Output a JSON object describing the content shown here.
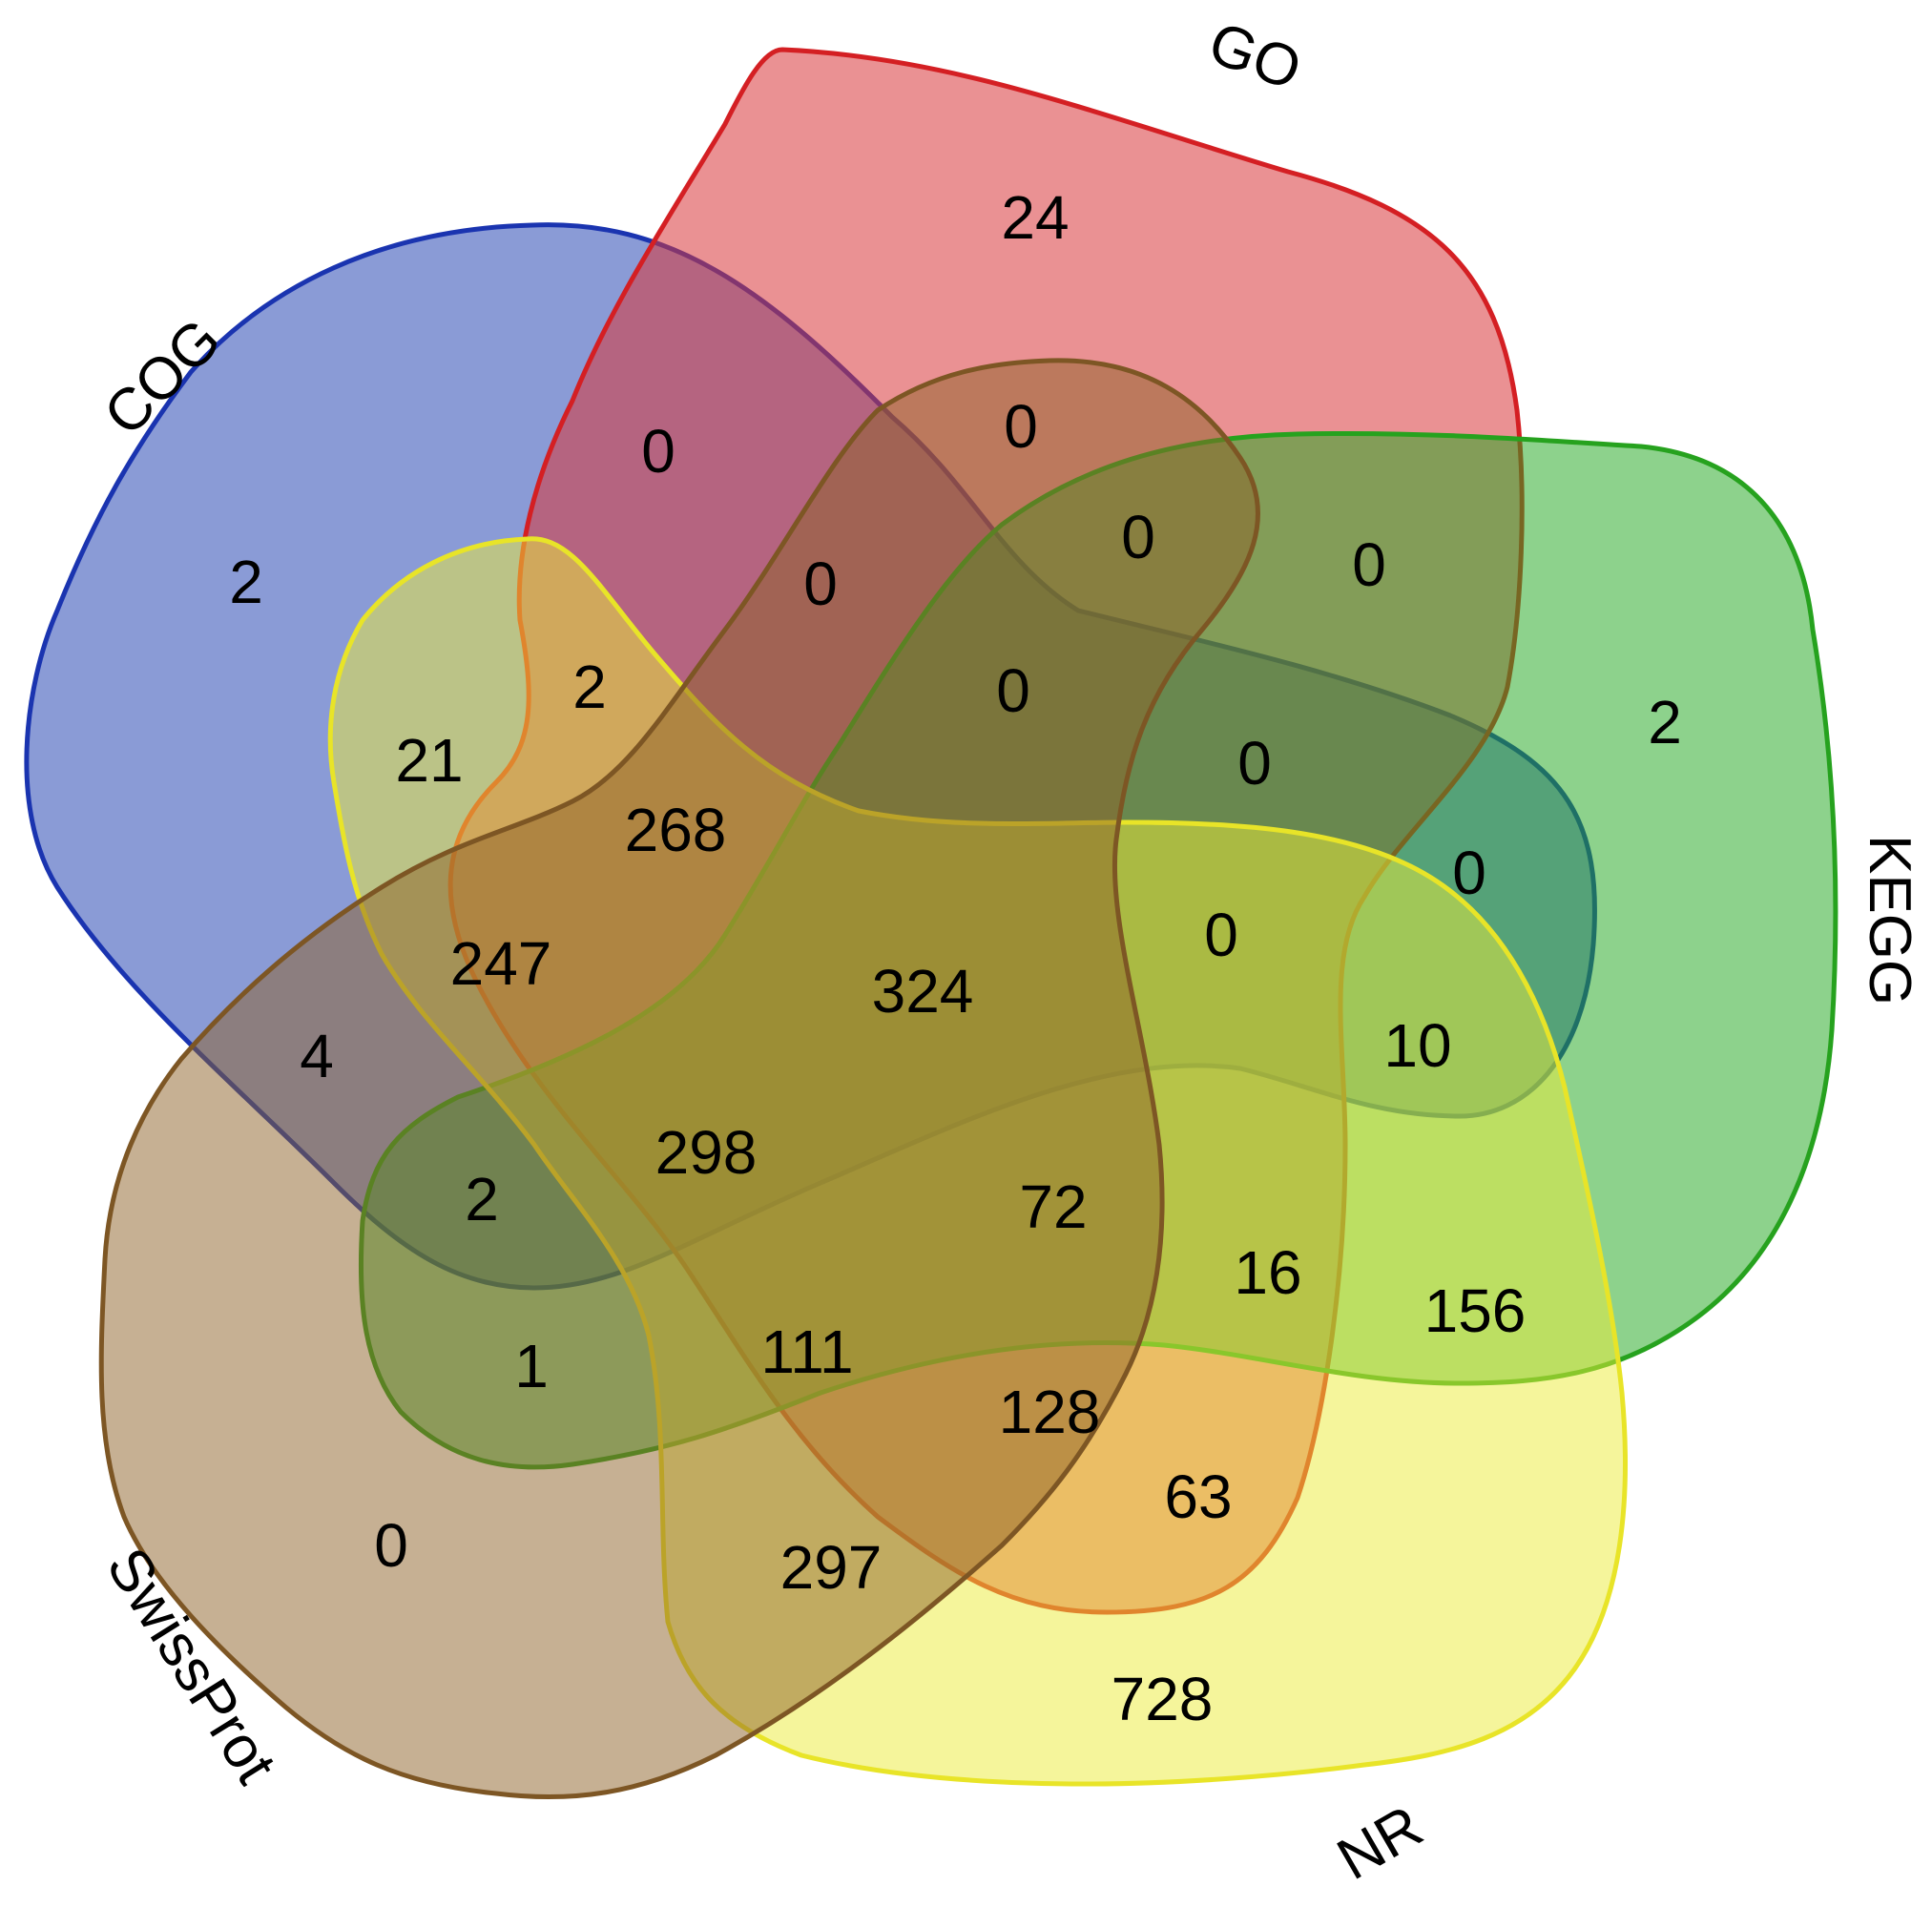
{
  "sets": [
    {
      "name": "COG",
      "fill": "#1f3fb0",
      "stroke": "#1a34b0"
    },
    {
      "name": "GO",
      "fill": "#d9363a",
      "stroke": "#d41f23"
    },
    {
      "name": "KEGG",
      "fill": "#25a923",
      "stroke": "#26a21e"
    },
    {
      "name": "NR",
      "fill": "#ecec38",
      "stroke": "#e8e428"
    },
    {
      "name": "SwissProt",
      "fill": "#8e6128",
      "stroke": "#7d5624"
    }
  ],
  "regions": [
    {
      "sets": [
        "GO"
      ],
      "count": "24"
    },
    {
      "sets": [
        "COG"
      ],
      "count": "2"
    },
    {
      "sets": [
        "KEGG"
      ],
      "count": "2"
    },
    {
      "sets": [
        "NR"
      ],
      "count": "728"
    },
    {
      "sets": [
        "SwissProt"
      ],
      "count": "0"
    },
    {
      "sets": [
        "COG",
        "GO"
      ],
      "count": "0"
    },
    {
      "sets": [
        "GO",
        "SwissProt"
      ],
      "count": "0"
    },
    {
      "sets": [
        "COG",
        "GO",
        "SwissProt"
      ],
      "count": "0"
    },
    {
      "sets": [
        "GO",
        "KEGG",
        "SwissProt"
      ],
      "count": "0"
    },
    {
      "sets": [
        "GO",
        "KEGG"
      ],
      "count": "0"
    },
    {
      "sets": [
        "COG",
        "GO",
        "KEGG",
        "SwissProt"
      ],
      "count": "0"
    },
    {
      "sets": [
        "COG",
        "GO",
        "KEGG"
      ],
      "count": "0"
    },
    {
      "sets": [
        "COG",
        "KEGG"
      ],
      "count": "0"
    },
    {
      "sets": [
        "COG",
        "GO",
        "KEGG",
        "NR"
      ],
      "count": "0"
    },
    {
      "sets": [
        "COG",
        "GO",
        "NR"
      ],
      "count": "2"
    },
    {
      "sets": [
        "COG",
        "NR"
      ],
      "count": "21"
    },
    {
      "sets": [
        "COG",
        "GO",
        "NR",
        "SwissProt"
      ],
      "count": "268"
    },
    {
      "sets": [
        "COG",
        "NR",
        "SwissProt"
      ],
      "count": "247"
    },
    {
      "sets": [
        "COG",
        "SwissProt"
      ],
      "count": "4"
    },
    {
      "sets": [
        "COG",
        "GO",
        "KEGG",
        "NR",
        "SwissProt"
      ],
      "count": "324"
    },
    {
      "sets": [
        "COG",
        "KEGG",
        "NR"
      ],
      "count": "10"
    },
    {
      "sets": [
        "COG",
        "KEGG",
        "NR",
        "SwissProt"
      ],
      "count": "298"
    },
    {
      "sets": [
        "COG",
        "KEGG",
        "SwissProt"
      ],
      "count": "2"
    },
    {
      "sets": [
        "GO",
        "KEGG",
        "NR",
        "SwissProt"
      ],
      "count": "72"
    },
    {
      "sets": [
        "GO",
        "KEGG",
        "NR"
      ],
      "count": "16"
    },
    {
      "sets": [
        "KEGG",
        "NR"
      ],
      "count": "156"
    },
    {
      "sets": [
        "KEGG",
        "SwissProt"
      ],
      "count": "1"
    },
    {
      "sets": [
        "KEGG",
        "NR",
        "SwissProt"
      ],
      "count": "111"
    },
    {
      "sets": [
        "GO",
        "NR",
        "SwissProt"
      ],
      "count": "128"
    },
    {
      "sets": [
        "GO",
        "NR"
      ],
      "count": "63"
    },
    {
      "sets": [
        "NR",
        "SwissProt"
      ],
      "count": "297"
    }
  ]
}
